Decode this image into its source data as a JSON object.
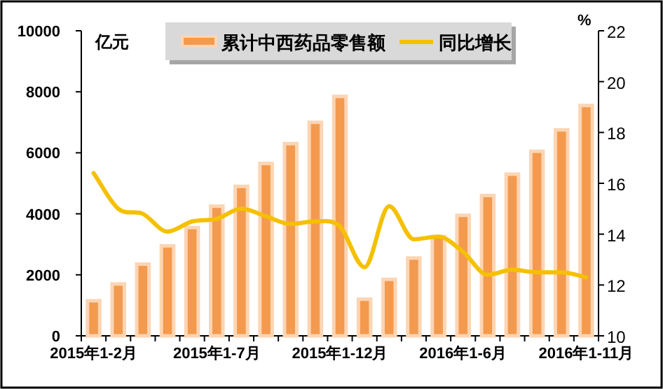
{
  "chart_data": {
    "type": "bar",
    "categories": [
      "2015年1-2月",
      null,
      null,
      null,
      null,
      "2015年1-7月",
      null,
      null,
      null,
      null,
      "2015年1-12月",
      null,
      null,
      null,
      null,
      "2016年1-6月",
      null,
      null,
      null,
      null,
      "2016年1-11月"
    ],
    "ylabel": "亿元",
    "y2label": "%",
    "series": [
      {
        "name": "累计中西药品零售额",
        "color": "#f39a4e",
        "values": [
          1150,
          1700,
          2350,
          2950,
          3550,
          4250,
          4900,
          5650,
          6300,
          7000,
          7850,
          1200,
          1850,
          2550,
          3250,
          3950,
          4600,
          5300,
          6050,
          6750,
          7550
        ]
      },
      {
        "name": "同比增长",
        "type": "line",
        "axis": "y2",
        "color": "#f5c000",
        "values": [
          16.4,
          15.0,
          14.8,
          14.1,
          14.5,
          14.6,
          15.0,
          14.7,
          14.4,
          14.5,
          14.3,
          12.7,
          15.1,
          13.8,
          13.9,
          13.3,
          12.4,
          12.6,
          12.5,
          12.5,
          12.3
        ]
      }
    ],
    "ylim": [
      0,
      10000
    ],
    "yticks": [
      0,
      2000,
      4000,
      6000,
      8000,
      10000
    ],
    "y2lim": [
      10,
      22
    ],
    "y2ticks": [
      10,
      12,
      14,
      16,
      18,
      20,
      22
    ],
    "legend": "top",
    "grid": false
  }
}
